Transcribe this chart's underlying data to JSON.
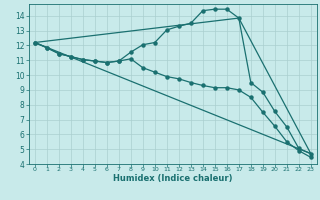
{
  "xlabel": "Humidex (Indice chaleur)",
  "xlim": [
    -0.5,
    23.5
  ],
  "ylim": [
    4,
    14.8
  ],
  "xticks": [
    0,
    1,
    2,
    3,
    4,
    5,
    6,
    7,
    8,
    9,
    10,
    11,
    12,
    13,
    14,
    15,
    16,
    17,
    18,
    19,
    20,
    21,
    22,
    23
  ],
  "yticks": [
    4,
    5,
    6,
    7,
    8,
    9,
    10,
    11,
    12,
    13,
    14
  ],
  "bg_color": "#c8eaea",
  "grid_color": "#aacfcf",
  "line_color": "#1a7070",
  "line1_x": [
    0,
    1,
    2,
    3,
    4,
    5,
    6,
    7,
    8,
    9,
    10,
    11,
    12,
    13,
    14,
    15,
    16,
    17,
    18,
    19,
    20,
    21,
    22,
    23
  ],
  "line1_y": [
    12.2,
    11.85,
    11.45,
    11.25,
    11.05,
    10.95,
    10.85,
    10.95,
    11.1,
    10.5,
    10.2,
    9.9,
    9.75,
    9.5,
    9.3,
    9.15,
    9.15,
    9.0,
    8.5,
    7.5,
    6.55,
    5.5,
    4.9,
    4.45
  ],
  "line2_x": [
    0,
    1,
    2,
    3,
    4,
    5,
    6,
    7,
    8,
    9,
    10,
    11,
    12,
    13,
    14,
    15,
    16,
    17,
    18,
    19,
    20,
    21,
    22,
    23
  ],
  "line2_y": [
    12.2,
    11.85,
    11.45,
    11.25,
    11.05,
    10.95,
    10.85,
    10.95,
    11.55,
    12.05,
    12.2,
    13.05,
    13.3,
    13.5,
    14.35,
    14.45,
    14.45,
    13.85,
    9.5,
    8.85,
    7.55,
    6.5,
    5.05,
    4.7
  ],
  "line3_x": [
    0,
    23
  ],
  "line3_y": [
    12.2,
    4.7
  ],
  "line4_x": [
    0,
    17,
    23
  ],
  "line4_y": [
    12.2,
    13.85,
    4.7
  ],
  "marker_size": 2.2
}
